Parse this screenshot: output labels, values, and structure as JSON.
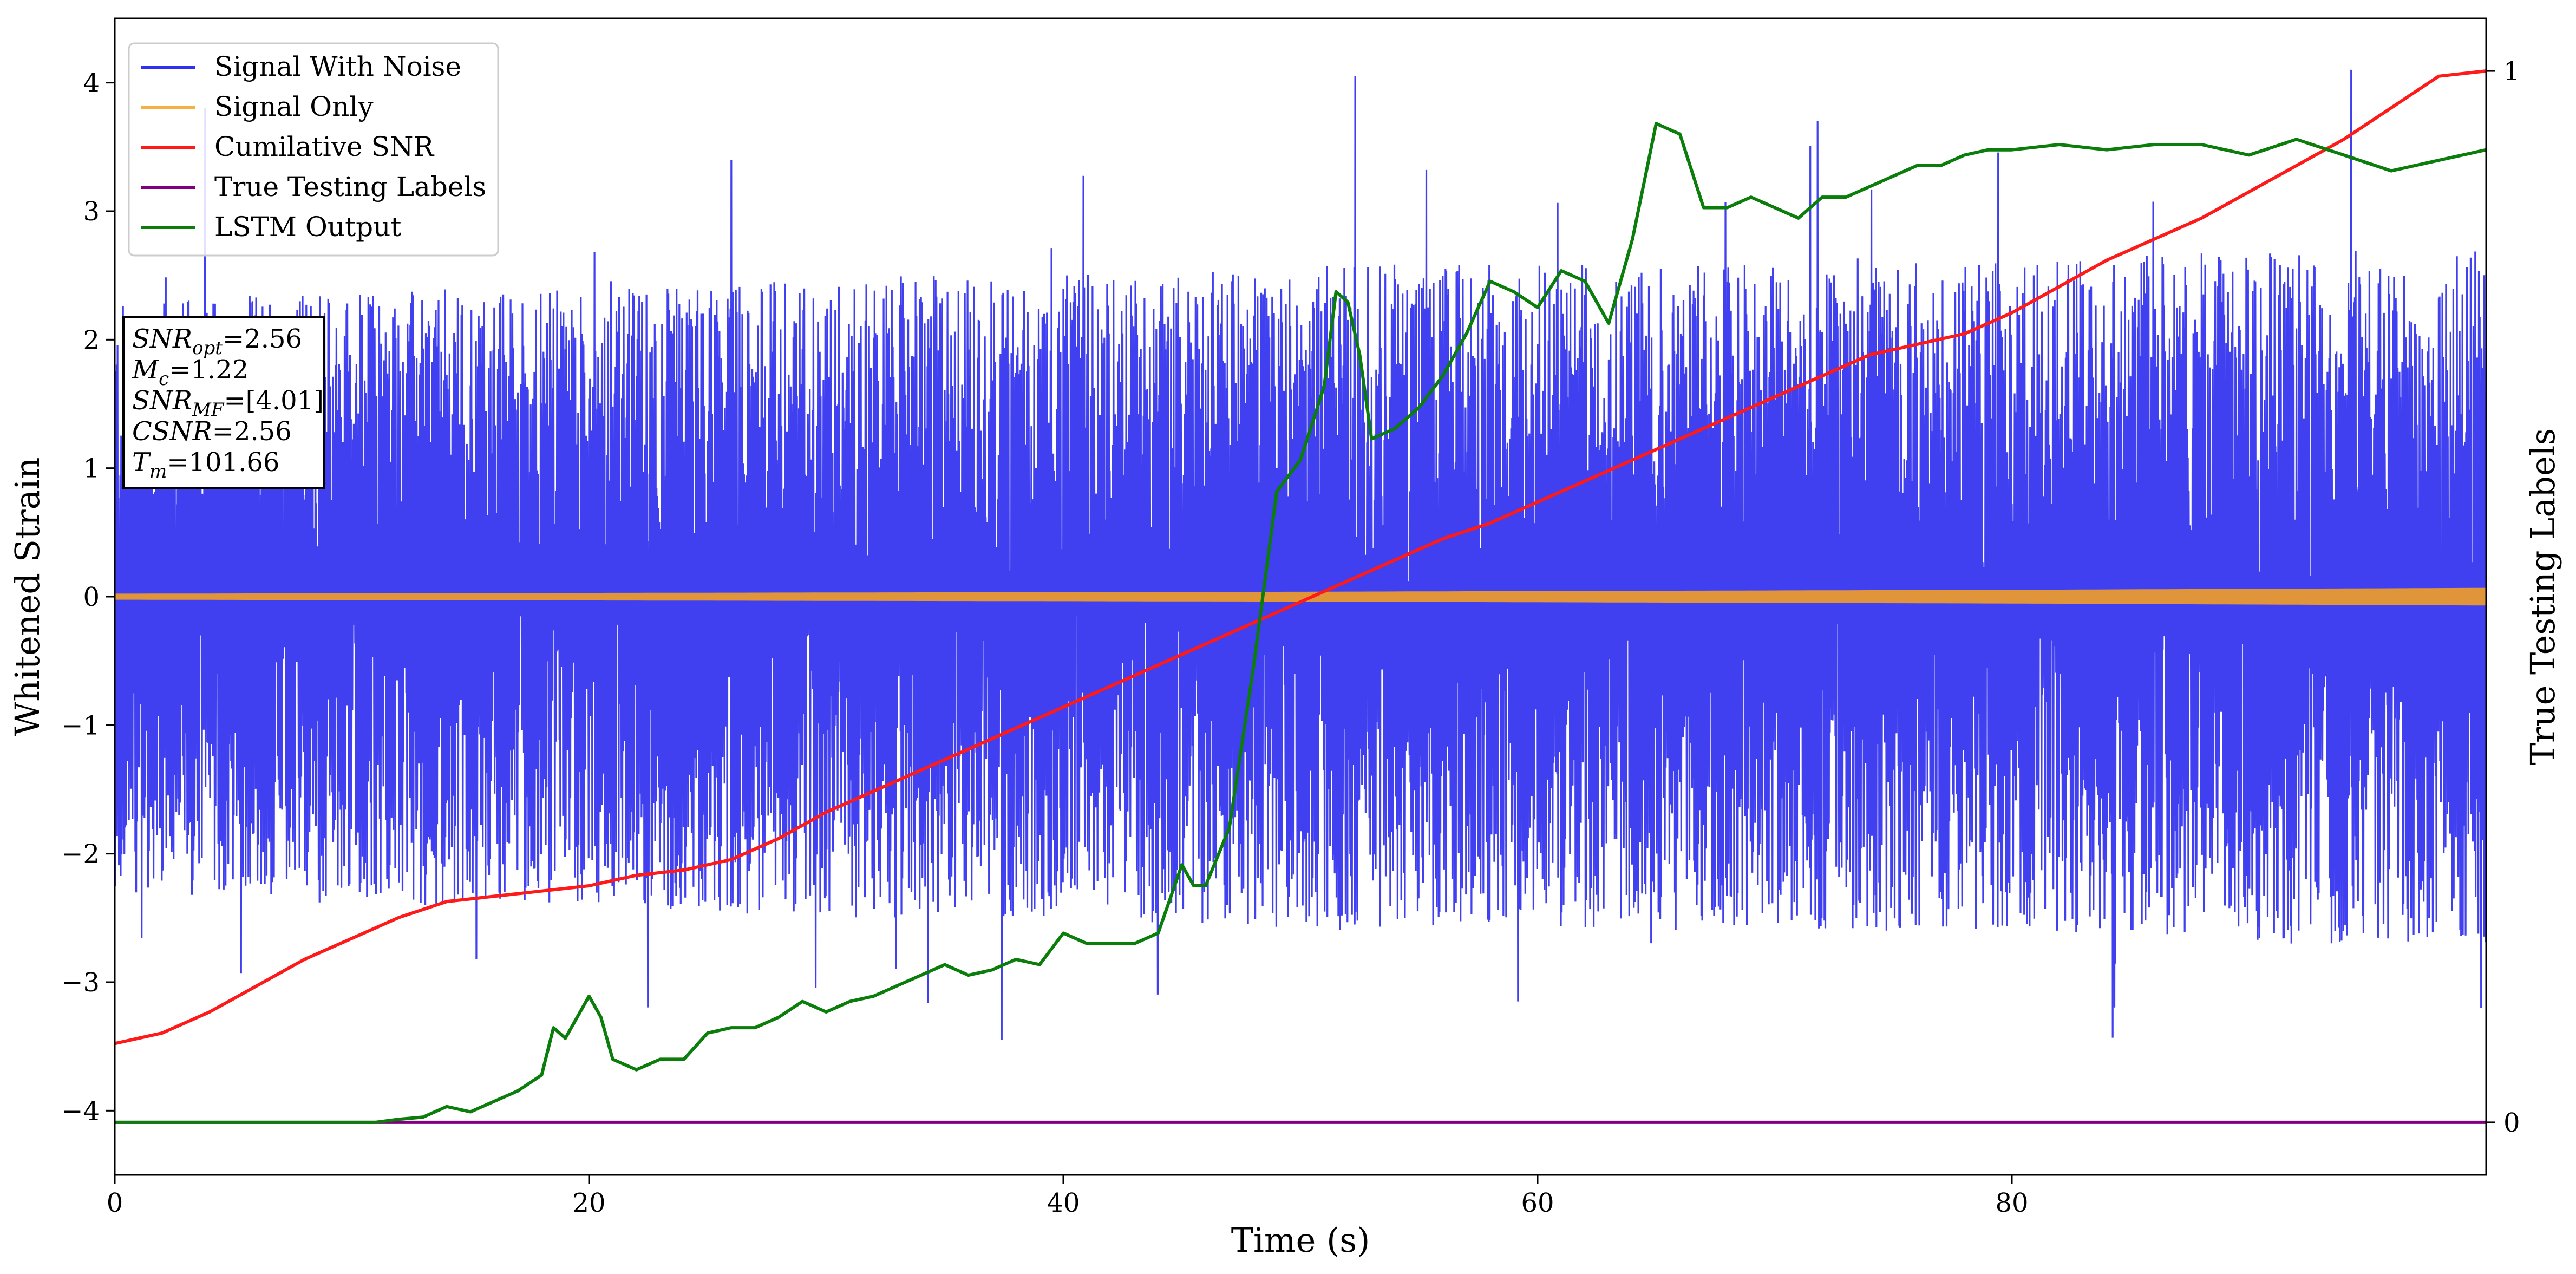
{
  "chart_data": {
    "type": "line",
    "xlabel": "Time (s)",
    "ylabel": "Whitened Strain",
    "ylabel_right": "True Testing Labels",
    "xlim": [
      0,
      100
    ],
    "ylim": [
      -4.5,
      4.5
    ],
    "ylim_right": [
      -0.05,
      1.05
    ],
    "x_ticks": [
      0,
      20,
      40,
      60,
      80
    ],
    "y_ticks": [
      -4,
      -3,
      -2,
      -1,
      0,
      1,
      2,
      3,
      4
    ],
    "y_ticks_right": [
      0,
      1
    ],
    "grid": false,
    "legend_position": "top-left",
    "legend": [
      {
        "name": "Signal With Noise",
        "color": "#3030f0"
      },
      {
        "name": "Signal Only",
        "color": "#f5b041"
      },
      {
        "name": "Cumilative SNR",
        "color": "#ff1a1a"
      },
      {
        "name": "True Testing Labels",
        "color": "#800080"
      },
      {
        "name": "LSTM Output",
        "color": "#0a7d0a"
      }
    ],
    "annotation": {
      "lines": [
        {
          "base": "SNR",
          "sub": "opt",
          "value": "=2.56"
        },
        {
          "base": "M",
          "sub": "c",
          "value": "=1.22"
        },
        {
          "base": "SNR",
          "sub": "MF",
          "value": "=[4.01]"
        },
        {
          "base": "CSNR",
          "sub": "",
          "value": "=2.56"
        },
        {
          "base": "T",
          "sub": "m",
          "value": "=101.66"
        }
      ]
    },
    "series": [
      {
        "name": "Signal With Noise",
        "axis": "left",
        "color": "#3030f0",
        "style": "noise",
        "envelope": {
          "x": [
            0,
            10,
            20,
            30,
            40,
            50,
            60,
            70,
            80,
            90,
            100
          ],
          "upper": [
            2.3,
            2.4,
            2.4,
            2.5,
            2.5,
            2.6,
            2.6,
            2.6,
            2.6,
            2.7,
            2.7
          ],
          "lower": [
            -2.3,
            -2.4,
            -2.4,
            -2.5,
            -2.5,
            -2.6,
            -2.6,
            -2.6,
            -2.6,
            -2.7,
            -2.7
          ]
        },
        "peaks": [
          {
            "x": 52.3,
            "y": 4.05
          },
          {
            "x": 94.3,
            "y": 4.1
          },
          {
            "x": 3.8,
            "y": 3.8
          },
          {
            "x": 17.1,
            "y": 3.8
          },
          {
            "x": 71.8,
            "y": 3.7
          },
          {
            "x": 64.6,
            "y": 3.65
          },
          {
            "x": 89.1,
            "y": 3.55
          },
          {
            "x": 26.0,
            "y": 3.4
          },
          {
            "x": 86.6,
            "y": 3.4
          },
          {
            "x": 88.2,
            "y": -3.65
          },
          {
            "x": 46.0,
            "y": -3.55
          },
          {
            "x": 37.4,
            "y": -3.45
          },
          {
            "x": 93.2,
            "y": -3.35
          },
          {
            "x": 59.5,
            "y": -3.3
          },
          {
            "x": 50.5,
            "y": -3.15
          },
          {
            "x": 63.0,
            "y": -3.2
          },
          {
            "x": 4.0,
            "y": -2.85
          },
          {
            "x": 1.5,
            "y": -2.6
          }
        ]
      },
      {
        "name": "Signal Only",
        "axis": "left",
        "color": "#e0953a",
        "style": "band",
        "envelope": {
          "x": [
            0,
            50,
            80,
            100
          ],
          "half_width": [
            0.015,
            0.03,
            0.045,
            0.06
          ]
        }
      },
      {
        "name": "Cumilative SNR",
        "axis": "right",
        "color": "#ff1a1a",
        "x": [
          0,
          2,
          4,
          6,
          8,
          10,
          12,
          14,
          16,
          18,
          20,
          22,
          24,
          26,
          28,
          30,
          32,
          34,
          36,
          38,
          40,
          42,
          44,
          46,
          48,
          50,
          52,
          54,
          56,
          58,
          60,
          62,
          64,
          66,
          68,
          70,
          72,
          74,
          76,
          78,
          80,
          82,
          84,
          86,
          88,
          90,
          92,
          94,
          96,
          98,
          100
        ],
        "y": [
          0.075,
          0.085,
          0.105,
          0.13,
          0.155,
          0.175,
          0.195,
          0.21,
          0.215,
          0.22,
          0.225,
          0.235,
          0.24,
          0.25,
          0.27,
          0.295,
          0.315,
          0.335,
          0.355,
          0.375,
          0.395,
          0.415,
          0.435,
          0.455,
          0.475,
          0.495,
          0.515,
          0.535,
          0.555,
          0.57,
          0.59,
          0.61,
          0.63,
          0.65,
          0.67,
          0.69,
          0.71,
          0.73,
          0.74,
          0.75,
          0.77,
          0.795,
          0.82,
          0.84,
          0.86,
          0.885,
          0.91,
          0.935,
          0.965,
          0.995,
          1.0
        ]
      },
      {
        "name": "True Testing Labels",
        "axis": "right",
        "color": "#800080",
        "x": [
          0,
          100
        ],
        "y": [
          0,
          0
        ]
      },
      {
        "name": "LSTM Output",
        "axis": "right",
        "color": "#0a7d0a",
        "x": [
          0,
          11,
          12,
          13,
          14,
          15,
          16,
          17,
          18,
          18.5,
          19,
          20,
          20.5,
          21,
          22,
          23,
          24,
          25,
          26,
          27,
          28,
          29,
          30,
          31,
          32,
          33,
          34,
          35,
          36,
          37,
          38,
          39,
          40,
          41,
          42,
          43,
          44,
          45,
          45.5,
          46,
          47,
          48,
          49,
          50,
          51,
          51.5,
          52,
          52.5,
          53,
          54,
          55,
          56,
          57,
          58,
          59,
          60,
          61,
          62,
          63,
          64,
          65,
          66,
          67,
          68,
          69,
          70,
          71,
          72,
          73,
          74,
          75,
          76,
          77,
          78,
          79,
          80,
          82,
          84,
          86,
          88,
          90,
          92,
          94,
          96,
          98,
          100
        ],
        "y": [
          0.0,
          0.0,
          0.003,
          0.005,
          0.015,
          0.01,
          0.02,
          0.03,
          0.045,
          0.09,
          0.08,
          0.12,
          0.1,
          0.06,
          0.05,
          0.06,
          0.06,
          0.085,
          0.09,
          0.09,
          0.1,
          0.115,
          0.105,
          0.115,
          0.12,
          0.13,
          0.14,
          0.15,
          0.14,
          0.145,
          0.155,
          0.15,
          0.18,
          0.17,
          0.17,
          0.17,
          0.18,
          0.245,
          0.225,
          0.225,
          0.28,
          0.43,
          0.6,
          0.63,
          0.7,
          0.79,
          0.78,
          0.73,
          0.65,
          0.66,
          0.68,
          0.71,
          0.75,
          0.8,
          0.79,
          0.775,
          0.81,
          0.8,
          0.76,
          0.84,
          0.95,
          0.94,
          0.87,
          0.87,
          0.88,
          0.87,
          0.86,
          0.88,
          0.88,
          0.89,
          0.9,
          0.91,
          0.91,
          0.92,
          0.925,
          0.925,
          0.93,
          0.925,
          0.93,
          0.93,
          0.92,
          0.935,
          0.92,
          0.905,
          0.915,
          0.925
        ]
      }
    ]
  }
}
